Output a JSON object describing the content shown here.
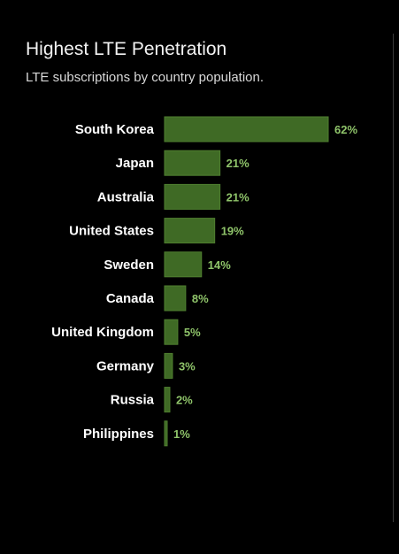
{
  "colors": {
    "background": "#000000",
    "bar": "#3f6a25",
    "bar_stroke": "#4f7f30",
    "value_label": "#8fc46a",
    "category_label": "#ffffff"
  },
  "chart_data": {
    "type": "bar",
    "orientation": "horizontal",
    "title": "Highest LTE Penetration",
    "subtitle": "LTE subscriptions by country population.",
    "categories": [
      "South Korea",
      "Japan",
      "Australia",
      "United States",
      "Sweden",
      "Canada",
      "United Kingdom",
      "Germany",
      "Russia",
      "Philippines"
    ],
    "values": [
      62,
      21,
      21,
      19,
      14,
      8,
      5,
      3,
      2,
      1
    ],
    "value_labels": [
      "62%",
      "21%",
      "21%",
      "19%",
      "14%",
      "8%",
      "5%",
      "3%",
      "2%",
      "1%"
    ],
    "unit": "%",
    "xlim": [
      0,
      62
    ],
    "grid": false,
    "legend": "none"
  }
}
